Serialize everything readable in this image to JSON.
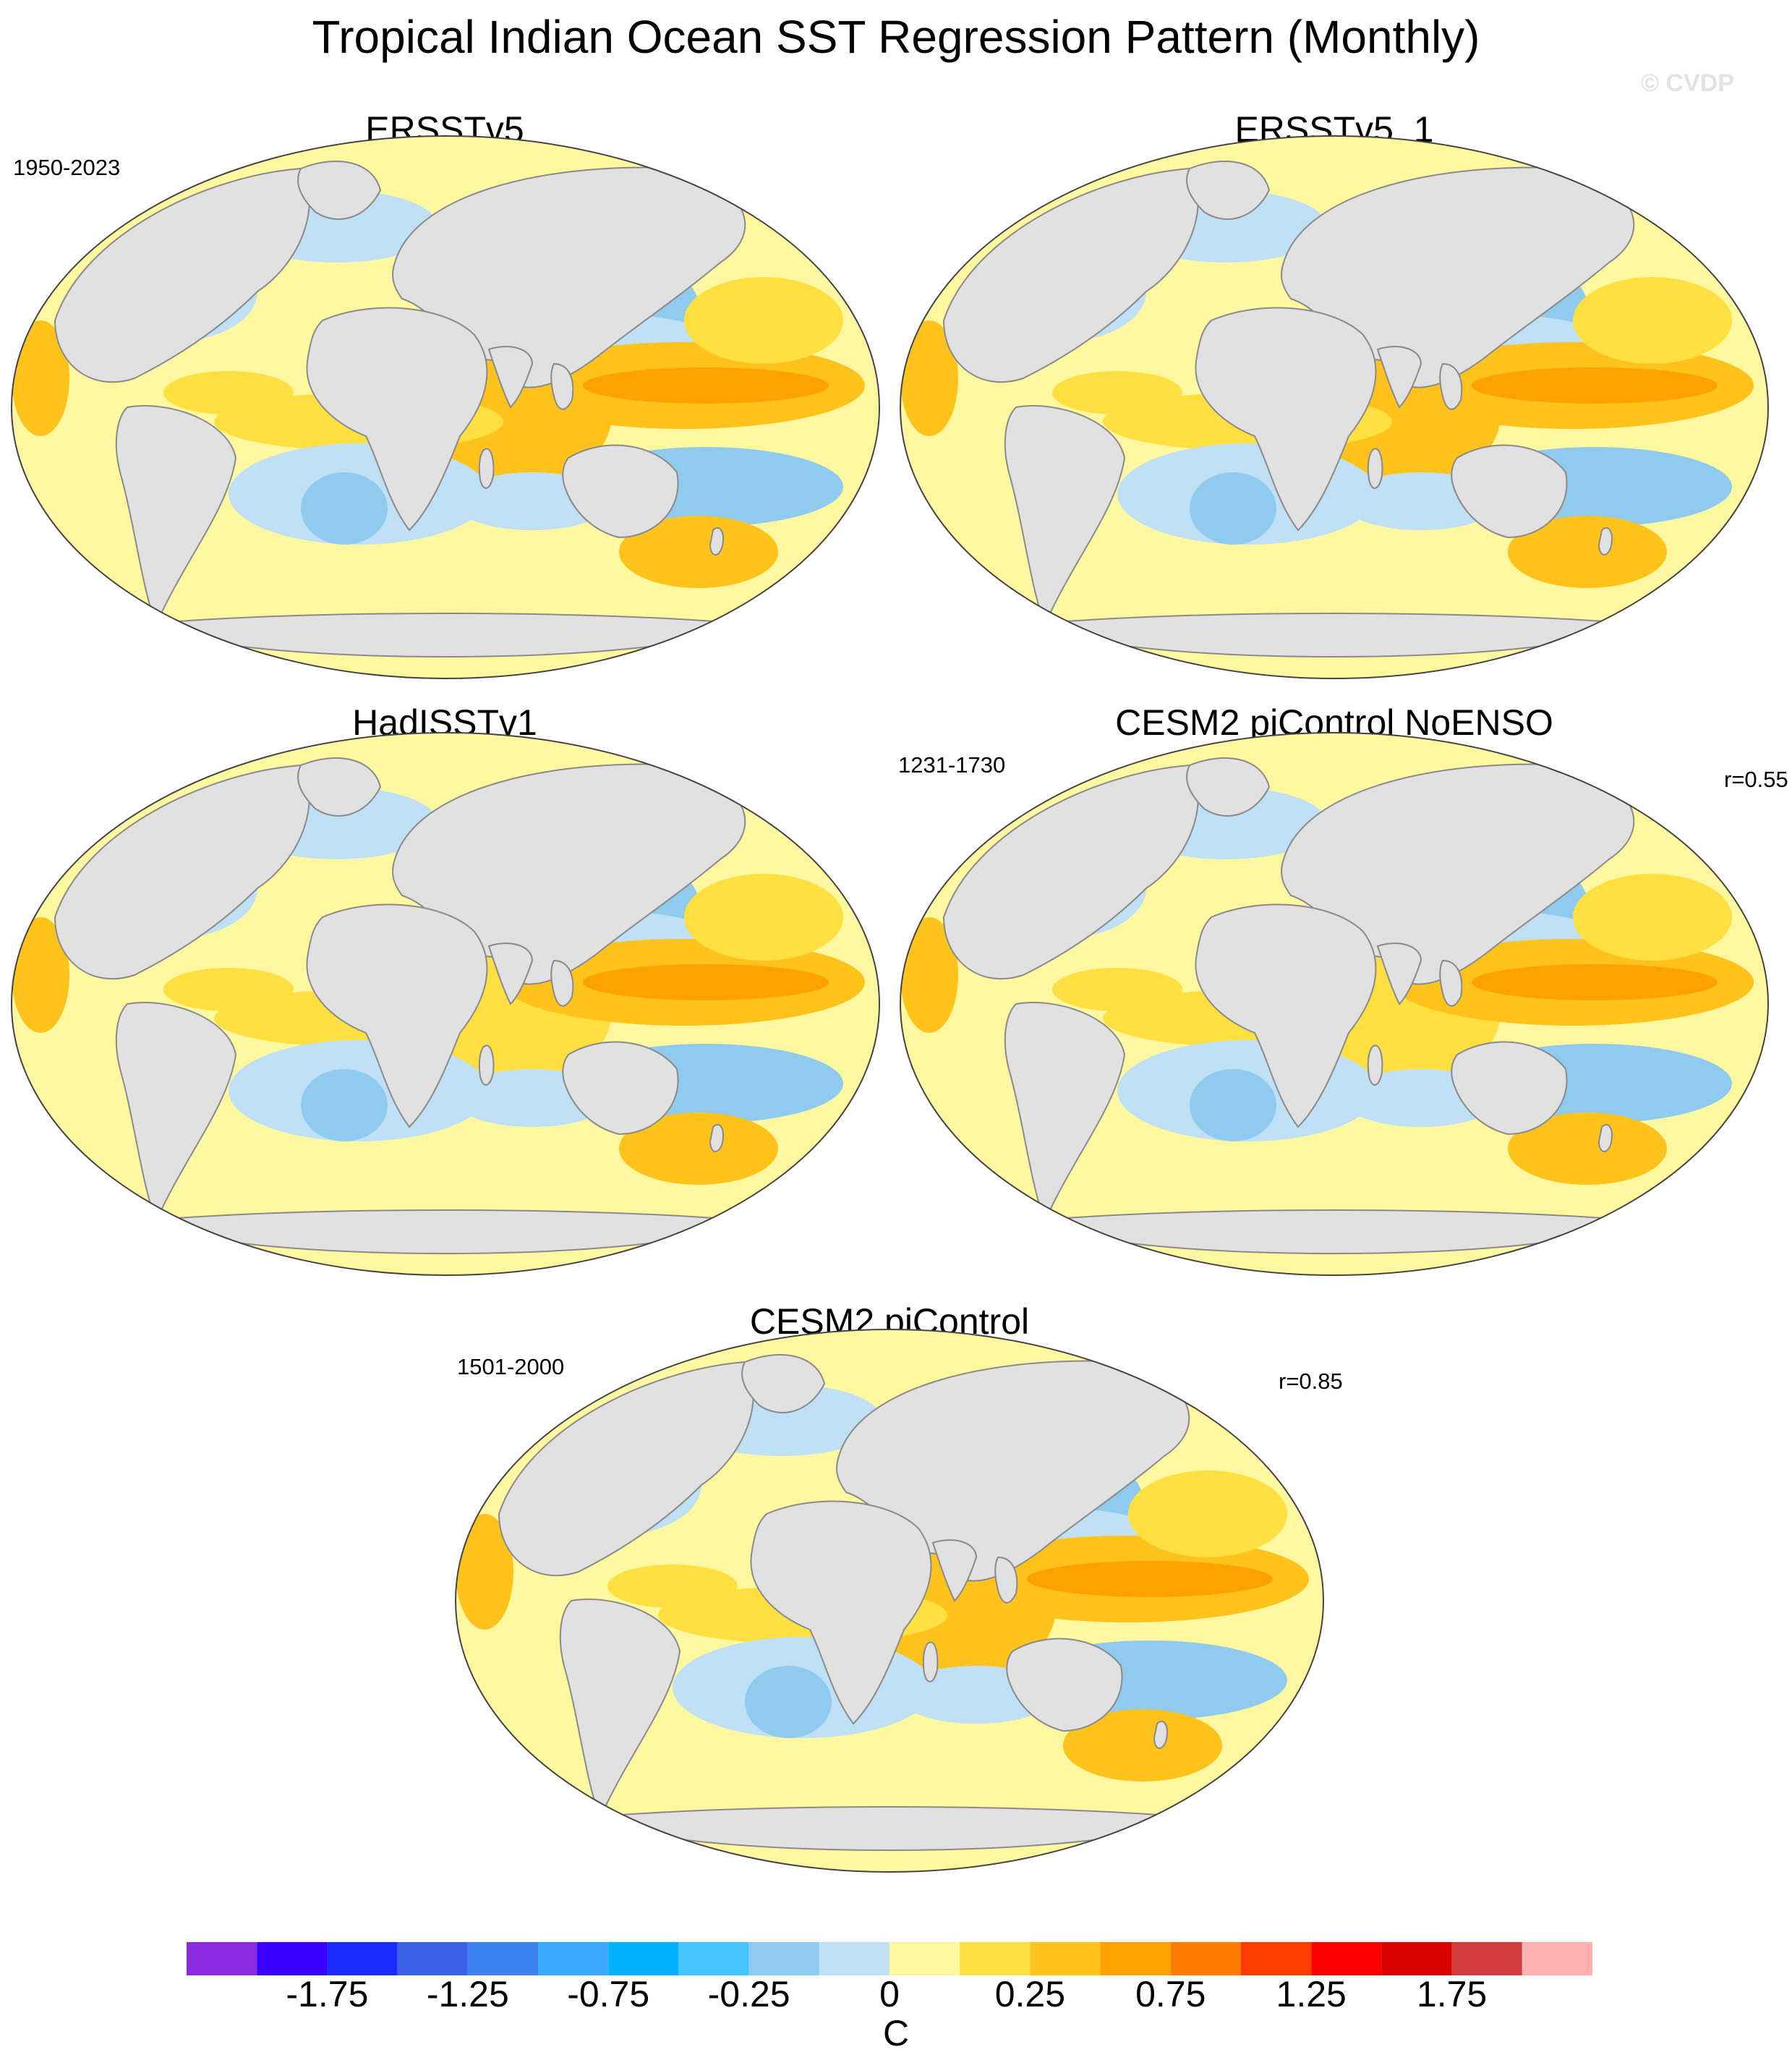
{
  "figure": {
    "title": "Tropical Indian Ocean SST Regression Pattern (Monthly)",
    "watermark": "© CVDP"
  },
  "panels": [
    {
      "title": "ERSSTv5",
      "period": "1950-2023",
      "corr": ""
    },
    {
      "title": "ERSSTv5_1",
      "period": "",
      "corr": ""
    },
    {
      "title": "HadISSTv1",
      "period": "",
      "corr": ""
    },
    {
      "title": "CESM2 piControl NoENSO",
      "period": "1231-1730",
      "corr": "r=0.55"
    },
    {
      "title": "CESM2 piControl",
      "period": "1501-2000",
      "corr": "r=0.85"
    }
  ],
  "colors": {
    "land": "#e1e1e1",
    "coast": "#8a8a8a",
    "light_blue": "#bfe0f5",
    "mid_blue": "#8ecbef",
    "light_yellow": "#fff8a0",
    "yellow": "#ffe040",
    "gold": "#ffc31c",
    "orange": "#ffa200"
  },
  "colorbar": {
    "colors": [
      "#8a2be2",
      "#3a00ff",
      "#1a2cff",
      "#3b62e6",
      "#3b82f0",
      "#3aa8ff",
      "#00b2ff",
      "#46c6ff",
      "#8ecbef",
      "#bfe0f5",
      "#fff8a0",
      "#ffe040",
      "#ffc31c",
      "#ffa200",
      "#ff7a00",
      "#ff3c00",
      "#ff0000",
      "#d80000",
      "#d23c3c",
      "#ffb0b0"
    ],
    "labels": [
      "-1.75",
      "-1.25",
      "-0.75",
      "-0.25",
      "0",
      "0.25",
      "0.75",
      "1.25",
      "1.75"
    ],
    "units": "C"
  }
}
